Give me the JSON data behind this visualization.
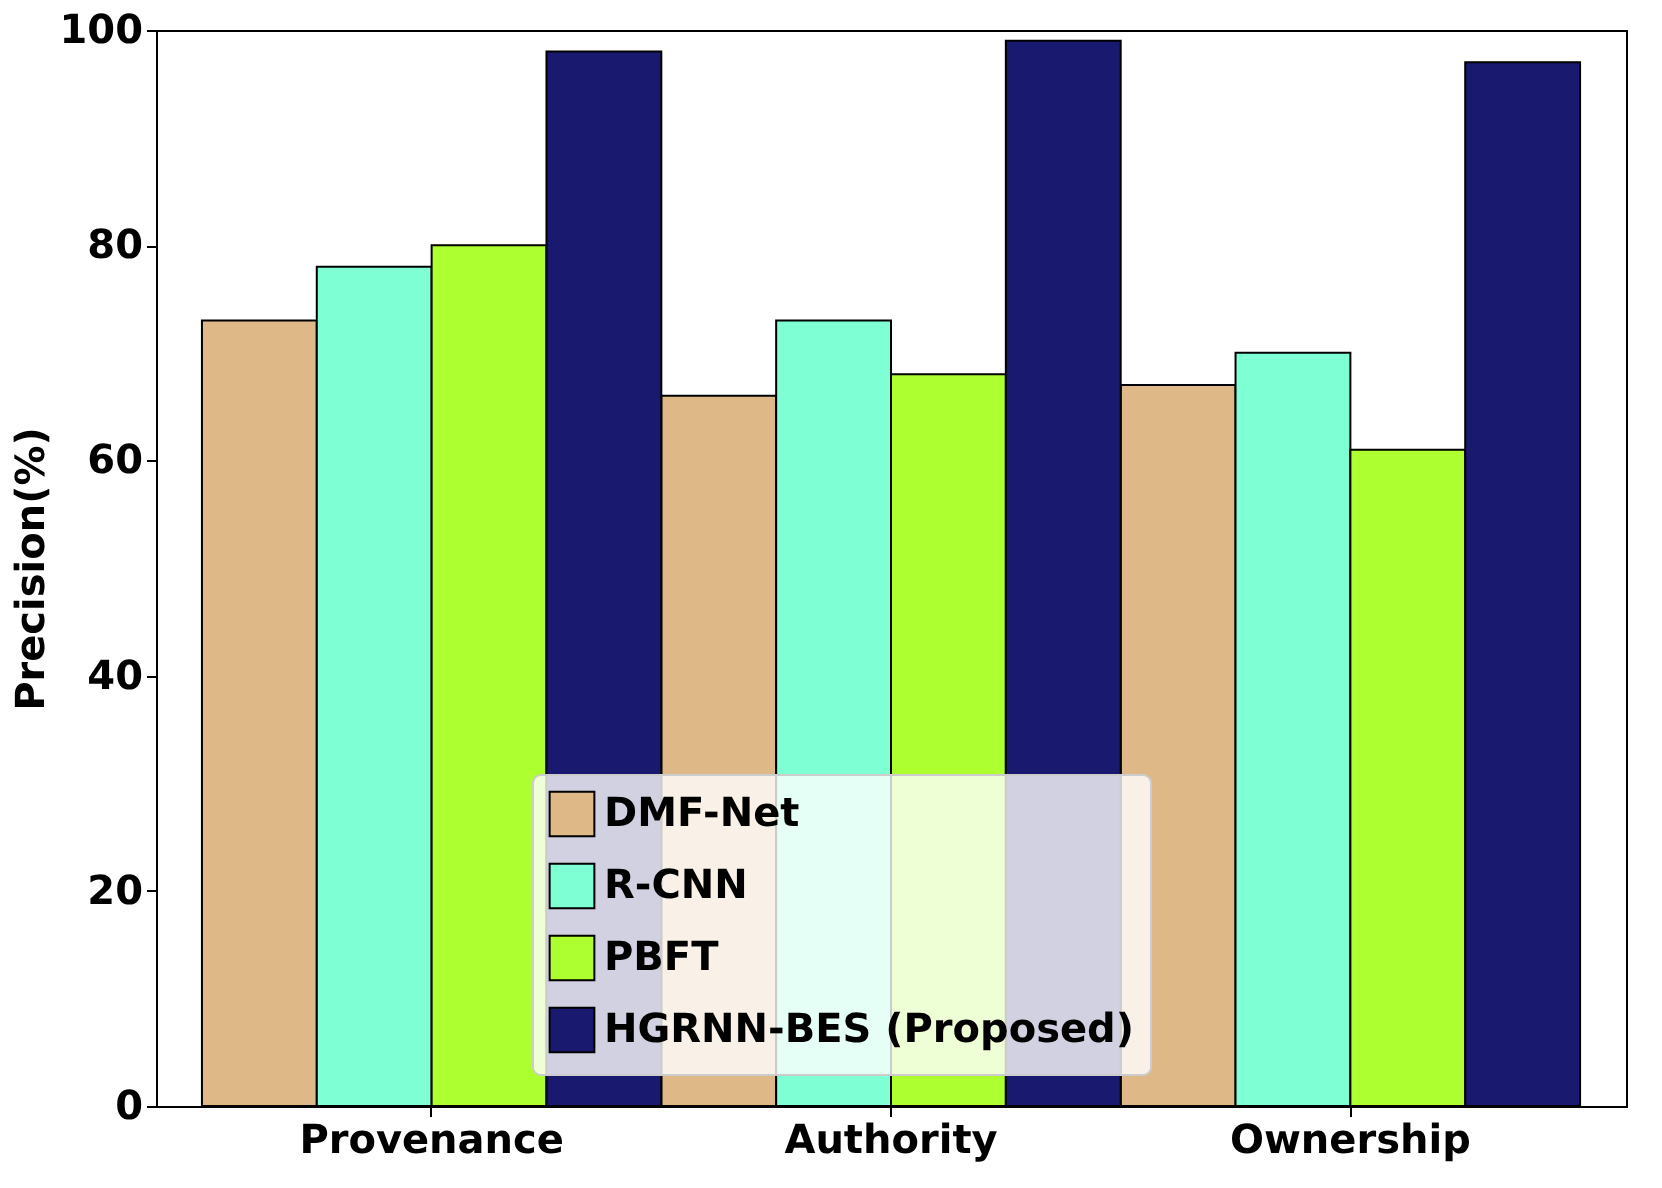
{
  "chart_data": {
    "type": "bar",
    "ylabel": "Precision(%)",
    "categories": [
      "Provenance",
      "Authority",
      "Ownership"
    ],
    "series": [
      {
        "name": "DMF-Net",
        "color": "#deb887",
        "values": [
          73,
          66,
          67
        ]
      },
      {
        "name": "R-CNN",
        "color": "#7fffd4",
        "values": [
          78,
          73,
          70
        ]
      },
      {
        "name": "PBFT",
        "color": "#adff2f",
        "values": [
          80,
          68,
          61
        ]
      },
      {
        "name": "HGRNN-BES (Proposed)",
        "color": "#191970",
        "values": [
          98,
          99,
          97
        ]
      }
    ],
    "ylim": [
      0,
      100
    ],
    "yticks": [
      0,
      20,
      40,
      60,
      80,
      100
    ],
    "grid": false,
    "legend": "bottom"
  }
}
